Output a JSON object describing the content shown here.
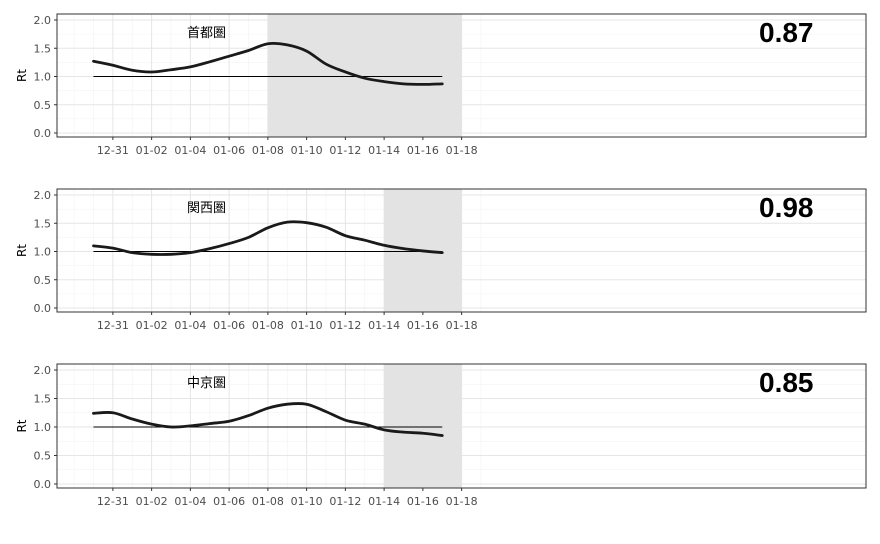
{
  "chart_data": [
    {
      "type": "line",
      "panel_label": "首都圏",
      "big_value": "0.87",
      "ylabel": "Rt",
      "xlabel": "",
      "x_ticks": [
        "12-31",
        "01-02",
        "01-04",
        "01-06",
        "01-08",
        "01-10",
        "01-12",
        "01-14",
        "01-16",
        "01-18"
      ],
      "x_range": [
        "2020-12-30",
        "2021-01-19"
      ],
      "ylim": [
        0.0,
        2.0
      ],
      "y_ticks": [
        "0.0",
        "0.5",
        "1.0",
        "1.5",
        "2.0"
      ],
      "shaded_range": [
        "2021-01-08",
        "2021-01-18"
      ],
      "reference_line": 1.0,
      "series": [
        {
          "x": [
            "2020-12-30",
            "2020-12-31",
            "2021-01-01",
            "2021-01-02",
            "2021-01-03",
            "2021-01-04",
            "2021-01-05",
            "2021-01-06",
            "2021-01-07",
            "2021-01-08",
            "2021-01-09",
            "2021-01-10",
            "2021-01-11",
            "2021-01-12",
            "2021-01-13",
            "2021-01-14",
            "2021-01-15",
            "2021-01-16",
            "2021-01-17"
          ],
          "values": [
            1.27,
            1.2,
            1.11,
            1.08,
            1.12,
            1.17,
            1.26,
            1.36,
            1.46,
            1.58,
            1.56,
            1.45,
            1.22,
            1.08,
            0.97,
            0.91,
            0.87,
            0.86,
            0.87
          ]
        }
      ]
    },
    {
      "type": "line",
      "panel_label": "関西圏",
      "big_value": "0.98",
      "ylabel": "Rt",
      "xlabel": "",
      "x_ticks": [
        "12-31",
        "01-02",
        "01-04",
        "01-06",
        "01-08",
        "01-10",
        "01-12",
        "01-14",
        "01-16",
        "01-18"
      ],
      "x_range": [
        "2020-12-30",
        "2021-01-19"
      ],
      "ylim": [
        0.0,
        2.0
      ],
      "y_ticks": [
        "0.0",
        "0.5",
        "1.0",
        "1.5",
        "2.0"
      ],
      "shaded_range": [
        "2021-01-14",
        "2021-01-18"
      ],
      "reference_line": 1.0,
      "series": [
        {
          "x": [
            "2020-12-30",
            "2020-12-31",
            "2021-01-01",
            "2021-01-02",
            "2021-01-03",
            "2021-01-04",
            "2021-01-05",
            "2021-01-06",
            "2021-01-07",
            "2021-01-08",
            "2021-01-09",
            "2021-01-10",
            "2021-01-11",
            "2021-01-12",
            "2021-01-13",
            "2021-01-14",
            "2021-01-15",
            "2021-01-16",
            "2021-01-17"
          ],
          "values": [
            1.1,
            1.06,
            0.98,
            0.95,
            0.95,
            0.98,
            1.05,
            1.14,
            1.25,
            1.42,
            1.52,
            1.51,
            1.43,
            1.28,
            1.2,
            1.11,
            1.05,
            1.01,
            0.98
          ]
        }
      ]
    },
    {
      "type": "line",
      "panel_label": "中京圏",
      "big_value": "0.85",
      "ylabel": "Rt",
      "xlabel": "",
      "x_ticks": [
        "12-31",
        "01-02",
        "01-04",
        "01-06",
        "01-08",
        "01-10",
        "01-12",
        "01-14",
        "01-16",
        "01-18"
      ],
      "x_range": [
        "2020-12-30",
        "2021-01-19"
      ],
      "ylim": [
        0.0,
        2.0
      ],
      "y_ticks": [
        "0.0",
        "0.5",
        "1.0",
        "1.5",
        "2.0"
      ],
      "shaded_range": [
        "2021-01-14",
        "2021-01-18"
      ],
      "reference_line": 1.0,
      "series": [
        {
          "x": [
            "2020-12-30",
            "2020-12-31",
            "2021-01-01",
            "2021-01-02",
            "2021-01-03",
            "2021-01-04",
            "2021-01-05",
            "2021-01-06",
            "2021-01-07",
            "2021-01-08",
            "2021-01-09",
            "2021-01-10",
            "2021-01-11",
            "2021-01-12",
            "2021-01-13",
            "2021-01-14",
            "2021-01-15",
            "2021-01-16",
            "2021-01-17"
          ],
          "values": [
            1.24,
            1.25,
            1.14,
            1.05,
            1.0,
            1.02,
            1.06,
            1.1,
            1.2,
            1.33,
            1.4,
            1.4,
            1.27,
            1.12,
            1.05,
            0.95,
            0.91,
            0.89,
            0.85
          ]
        }
      ]
    }
  ],
  "colors": {
    "line": "#1a1a1a",
    "shade": "#e3e3e3",
    "grid_major": "#e6e6e6",
    "grid_minor": "#f2f2f2",
    "axis_text": "#4d4d4d"
  }
}
